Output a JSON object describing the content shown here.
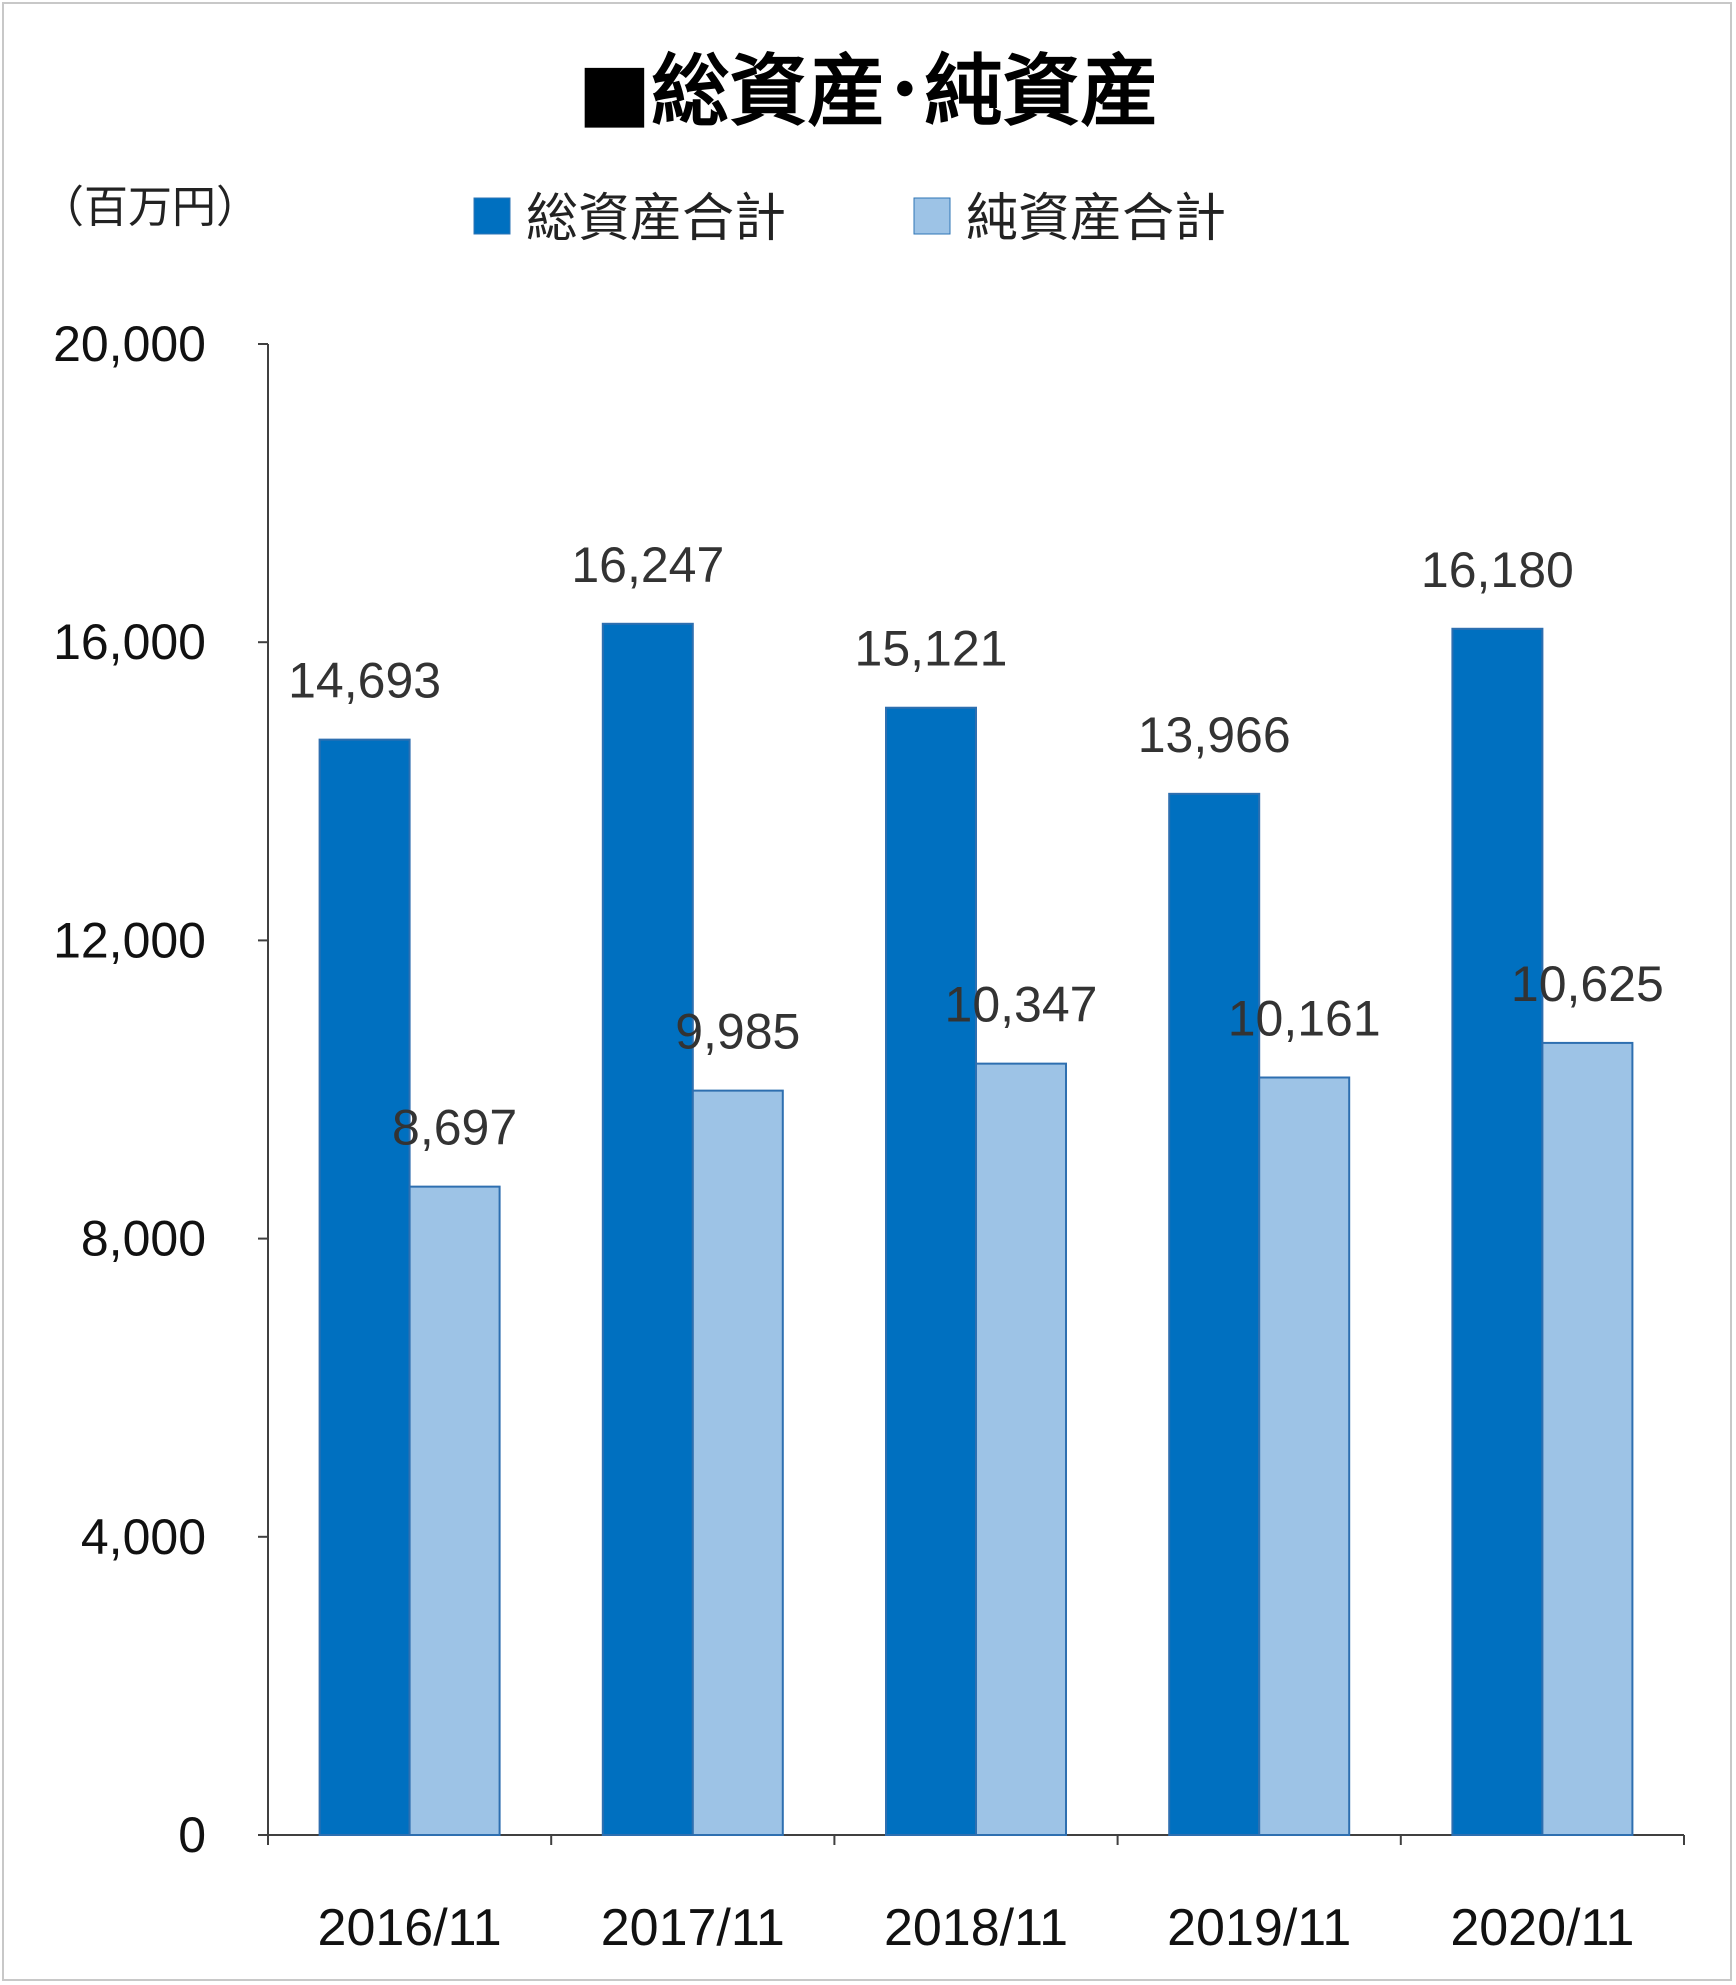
{
  "chart_data": {
    "type": "bar",
    "title": "■総資産･純資産",
    "unit_label": "（百万円）",
    "categories": [
      "2016/11",
      "2017/11",
      "2018/11",
      "2019/11",
      "2020/11"
    ],
    "series": [
      {
        "name": "総資産合計",
        "color": "#0070C0",
        "values": [
          14693,
          16247,
          15121,
          13966,
          16180
        ],
        "labels": [
          "14,693",
          "16,247",
          "15,121",
          "13,966",
          "16,180"
        ]
      },
      {
        "name": "純資産合計",
        "color": "#9DC3E6",
        "values": [
          8697,
          9985,
          10347,
          10161,
          10625
        ],
        "labels": [
          "8,697",
          "9,985",
          "10,347",
          "10,161",
          "10,625"
        ]
      }
    ],
    "ylim": [
      0,
      20000
    ],
    "yticks": [
      0,
      4000,
      8000,
      12000,
      16000,
      20000
    ],
    "ytick_labels": [
      "0",
      "4,000",
      "8,000",
      "12,000",
      "16,000",
      "20,000"
    ],
    "legend_position": "top",
    "grid": false
  }
}
